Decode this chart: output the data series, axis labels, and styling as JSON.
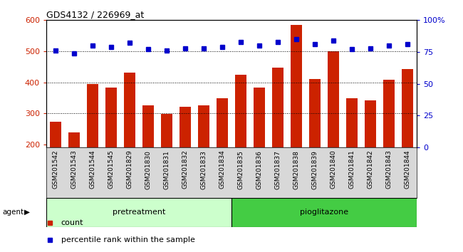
{
  "title": "GDS4132 / 226969_at",
  "categories": [
    "GSM201542",
    "GSM201543",
    "GSM201544",
    "GSM201545",
    "GSM201829",
    "GSM201830",
    "GSM201831",
    "GSM201832",
    "GSM201833",
    "GSM201834",
    "GSM201835",
    "GSM201836",
    "GSM201837",
    "GSM201838",
    "GSM201839",
    "GSM201840",
    "GSM201841",
    "GSM201842",
    "GSM201843",
    "GSM201844"
  ],
  "bar_values": [
    272,
    238,
    395,
    382,
    432,
    325,
    298,
    320,
    325,
    348,
    425,
    384,
    448,
    585,
    410,
    500,
    349,
    342,
    408,
    442
  ],
  "dot_values": [
    76,
    74,
    80,
    79,
    82,
    77,
    76,
    78,
    78,
    79,
    83,
    80,
    83,
    85,
    81,
    84,
    77,
    78,
    80,
    81
  ],
  "bar_color": "#cc2200",
  "dot_color": "#0000cc",
  "ylim_left": [
    190,
    600
  ],
  "ylim_right": [
    0,
    100
  ],
  "yticks_left": [
    200,
    300,
    400,
    500,
    600
  ],
  "yticks_right": [
    0,
    25,
    50,
    75,
    100
  ],
  "ytick_labels_right": [
    "0",
    "25",
    "50",
    "75",
    "100%"
  ],
  "grid_lines": [
    300,
    400,
    500
  ],
  "pretreatment_count": 10,
  "pioglitazone_count": 10,
  "pretreatment_label": "pretreatment",
  "pioglitazone_label": "pioglitazone",
  "agent_label": "agent",
  "legend_count_label": "count",
  "legend_pct_label": "percentile rank within the sample",
  "pretreatment_color": "#ccffcc",
  "pioglitazone_color": "#44cc44",
  "xtick_bg_color": "#d8d8d8",
  "bar_bottom": 190
}
